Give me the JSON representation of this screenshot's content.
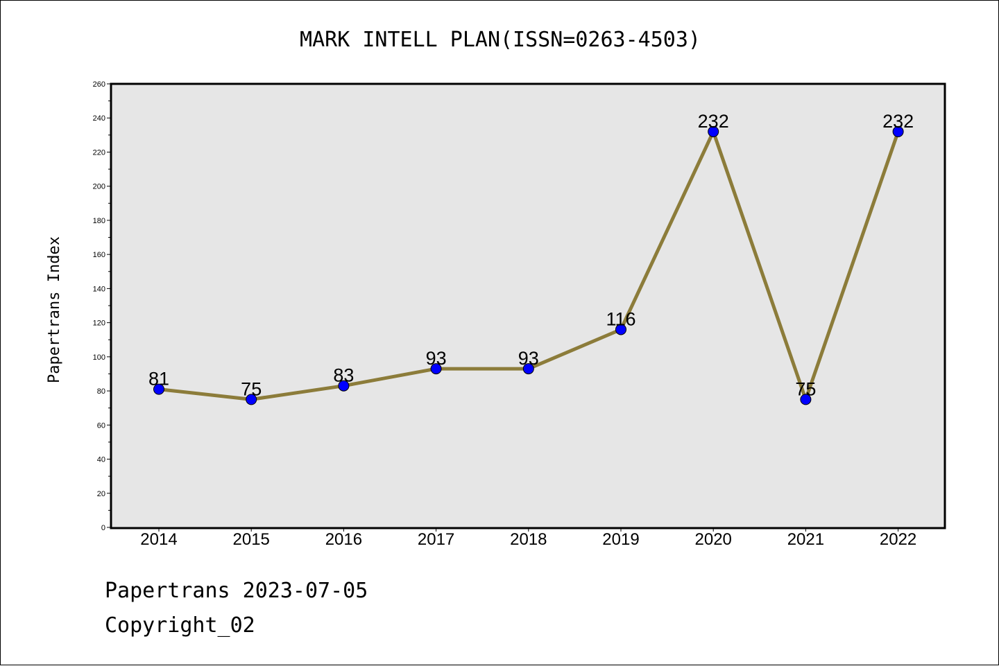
{
  "chart_data": {
    "type": "line",
    "title": "MARK INTELL PLAN(ISSN=0263-4503)",
    "ylabel": "Papertrans Index",
    "xlabel": "",
    "categories": [
      "2014",
      "2015",
      "2016",
      "2017",
      "2018",
      "2019",
      "2020",
      "2021",
      "2022"
    ],
    "series": [
      {
        "values": [
          81,
          75,
          83,
          93,
          93,
          116,
          232,
          75,
          232
        ]
      }
    ],
    "ylim": [
      0,
      260
    ],
    "yticks": [
      0,
      20,
      40,
      60,
      80,
      100,
      120,
      140,
      160,
      180,
      200,
      220,
      240,
      260
    ],
    "data_labels": true,
    "grid": false,
    "colors": {
      "line": "#8c7c3a",
      "marker": "#0000ff",
      "plot_bg": "#e6e6e6"
    }
  },
  "footer": {
    "line1": "Papertrans 2023-07-05",
    "line2": "Copyright_02"
  }
}
